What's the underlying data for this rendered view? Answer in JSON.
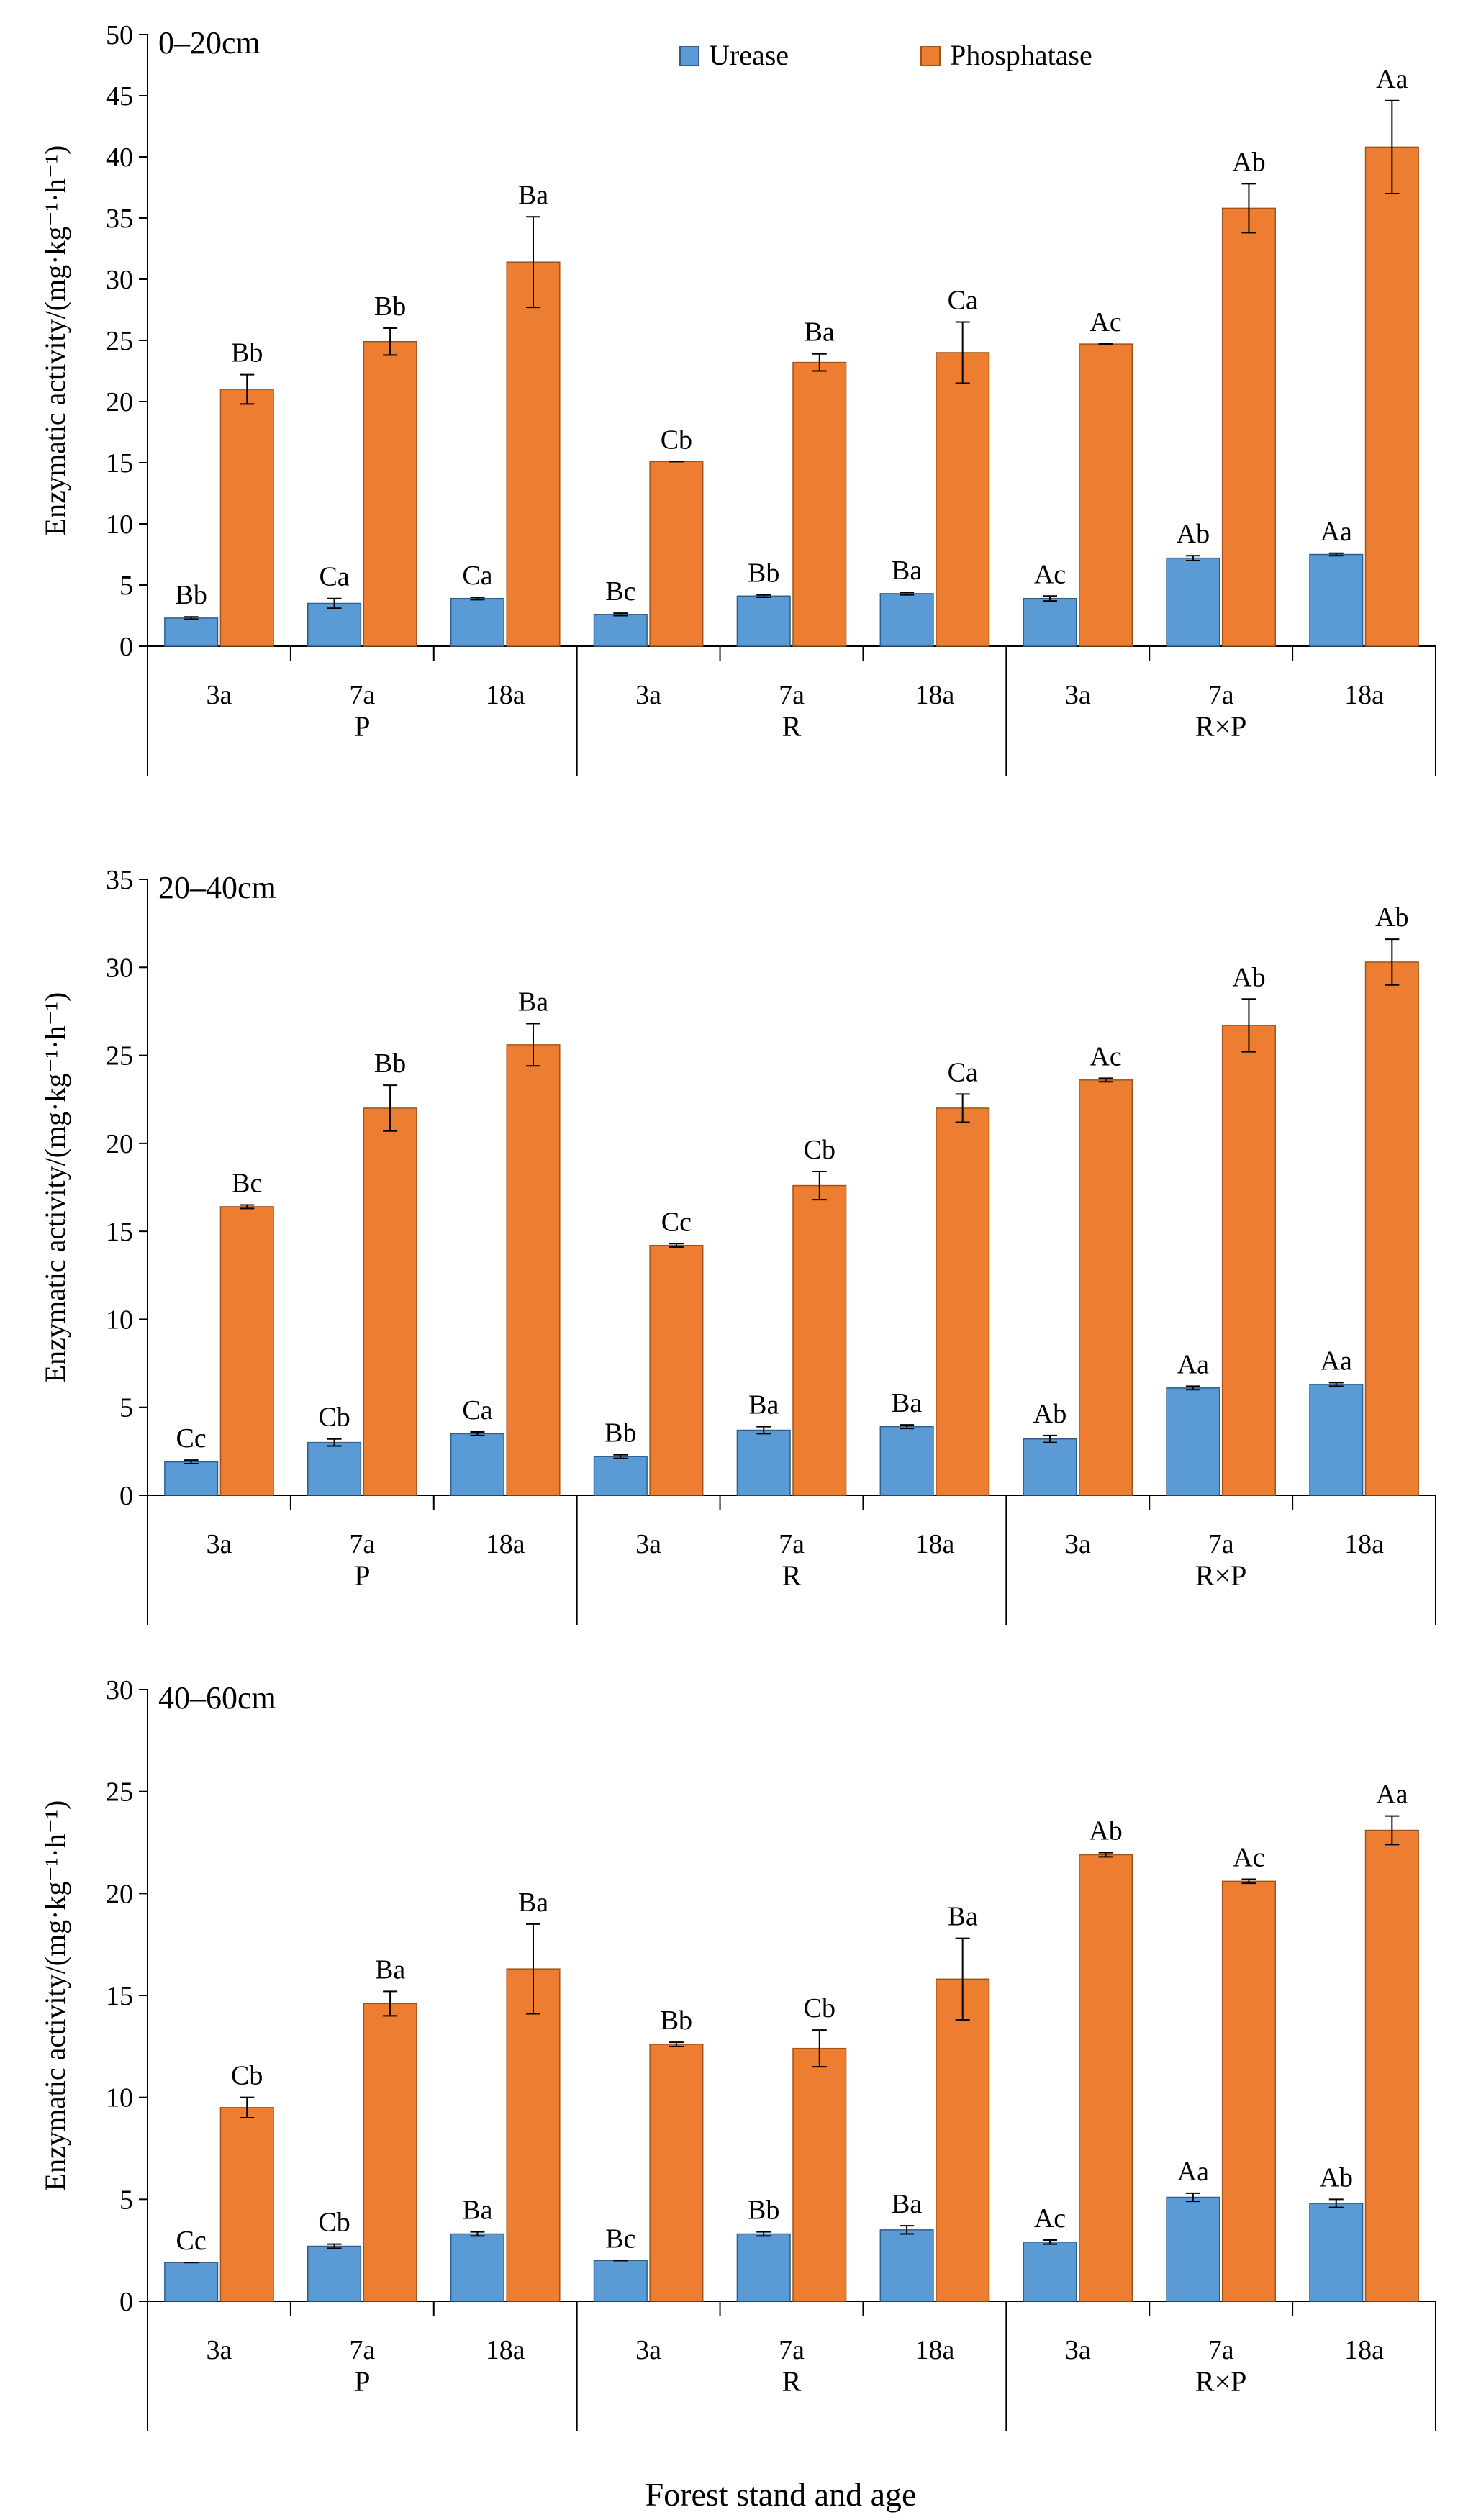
{
  "chart_data": {
    "type": "bar",
    "x_title": "Forest stand and age",
    "ylabel": "Enzymatic activity/(mg·kg⁻¹·h⁻¹)",
    "legend": {
      "position": "top-center",
      "entries": [
        {
          "name": "Urease",
          "color": "#5B9BD5"
        },
        {
          "name": "Phosphatase",
          "color": "#ED7D31"
        }
      ]
    },
    "groups": [
      "P",
      "R",
      "R×P"
    ],
    "ages": [
      "3a",
      "7a",
      "18a"
    ],
    "panels": [
      {
        "title": "0–20cm",
        "ylim": [
          0,
          50
        ],
        "yticks": [
          0,
          5,
          10,
          15,
          20,
          25,
          30,
          35,
          40,
          45,
          50
        ],
        "series": [
          {
            "name": "Urease",
            "values": [
              2.3,
              3.5,
              3.9,
              2.6,
              4.1,
              4.3,
              3.9,
              7.2,
              7.5
            ],
            "errors": [
              0.1,
              0.4,
              0.1,
              0.1,
              0.1,
              0.1,
              0.2,
              0.2,
              0.1
            ],
            "labels": [
              "Bb",
              "Ca",
              "Ca",
              "Bc",
              "Bb",
              "Ba",
              "Ac",
              "Ab",
              "Aa"
            ]
          },
          {
            "name": "Phosphatase",
            "values": [
              21.0,
              24.9,
              31.4,
              15.1,
              23.2,
              24.0,
              24.7,
              35.8,
              40.8
            ],
            "errors": [
              1.2,
              1.1,
              3.7,
              0.0,
              0.7,
              2.5,
              0.0,
              2.0,
              3.8
            ],
            "labels": [
              "Bb",
              "Bb",
              "Ba",
              "Cb",
              "Ba",
              "Ca",
              "Ac",
              "Ab",
              "Aa"
            ]
          }
        ]
      },
      {
        "title": "20–40cm",
        "ylim": [
          0,
          35
        ],
        "yticks": [
          0,
          5,
          10,
          15,
          20,
          25,
          30,
          35
        ],
        "series": [
          {
            "name": "Urease",
            "values": [
              1.9,
              3.0,
              3.5,
              2.2,
              3.7,
              3.9,
              3.2,
              6.1,
              6.3
            ],
            "errors": [
              0.1,
              0.2,
              0.1,
              0.1,
              0.2,
              0.1,
              0.2,
              0.1,
              0.1
            ],
            "labels": [
              "Cc",
              "Cb",
              "Ca",
              "Bb",
              "Ba",
              "Ba",
              "Ab",
              "Aa",
              "Aa"
            ]
          },
          {
            "name": "Phosphatase",
            "values": [
              16.4,
              22.0,
              25.6,
              14.2,
              17.6,
              22.0,
              23.6,
              26.7,
              30.3
            ],
            "errors": [
              0.1,
              1.3,
              1.2,
              0.1,
              0.8,
              0.8,
              0.1,
              1.5,
              1.3
            ],
            "labels": [
              "Bc",
              "Bb",
              "Ba",
              "Cc",
              "Cb",
              "Ca",
              "Ac",
              "Ab",
              "Ab"
            ]
          }
        ]
      },
      {
        "title": "40–60cm",
        "ylim": [
          0,
          30
        ],
        "yticks": [
          0,
          5,
          10,
          15,
          20,
          25,
          30
        ],
        "series": [
          {
            "name": "Urease",
            "values": [
              1.9,
              2.7,
              3.3,
              2.0,
              3.3,
              3.5,
              2.9,
              5.1,
              4.8
            ],
            "errors": [
              0.0,
              0.1,
              0.1,
              0.0,
              0.1,
              0.2,
              0.1,
              0.2,
              0.2
            ],
            "labels": [
              "Cc",
              "Cb",
              "Ba",
              "Bc",
              "Bb",
              "Ba",
              "Ac",
              "Aa",
              "Ab"
            ]
          },
          {
            "name": "Phosphatase",
            "values": [
              9.5,
              14.6,
              16.3,
              12.6,
              12.4,
              15.8,
              21.9,
              20.6,
              23.1
            ],
            "errors": [
              0.5,
              0.6,
              2.2,
              0.1,
              0.9,
              2.0,
              0.1,
              0.1,
              0.7
            ],
            "labels": [
              "Cb",
              "Ba",
              "Ba",
              "Bb",
              "Cb",
              "Ba",
              "Ab",
              "Ac",
              "Aa"
            ]
          }
        ]
      }
    ]
  }
}
